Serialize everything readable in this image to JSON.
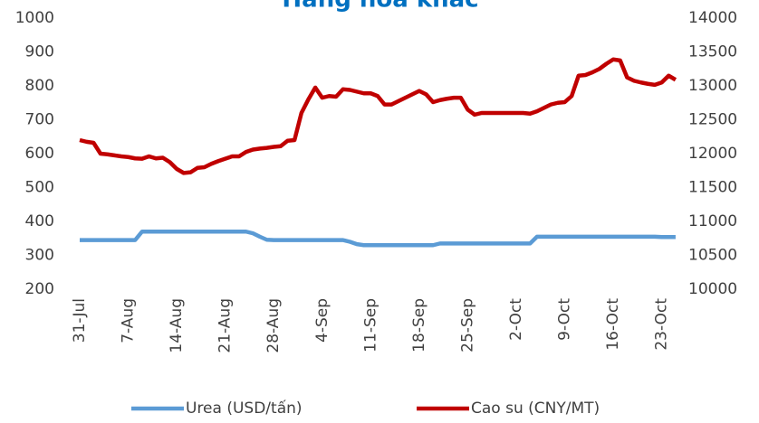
{
  "chart_data": {
    "type": "line",
    "title": "Hàng hóa khác",
    "categories": [
      "31-Jul",
      null,
      null,
      null,
      null,
      null,
      null,
      "7-Aug",
      null,
      null,
      null,
      null,
      null,
      null,
      "14-Aug",
      null,
      null,
      null,
      null,
      null,
      null,
      "21-Aug",
      null,
      null,
      null,
      null,
      null,
      null,
      "28-Aug",
      null,
      null,
      null,
      null,
      null,
      null,
      "4-Sep",
      null,
      null,
      null,
      null,
      null,
      null,
      "11-Sep",
      null,
      null,
      null,
      null,
      null,
      null,
      "18-Sep",
      null,
      null,
      null,
      null,
      null,
      null,
      "25-Sep",
      null,
      null,
      null,
      null,
      null,
      null,
      "2-Oct",
      null,
      null,
      null,
      null,
      null,
      null,
      "9-Oct",
      null,
      null,
      null,
      null,
      null,
      null,
      "16-Oct",
      null,
      null,
      null,
      null,
      null,
      null,
      "23-Oct",
      null,
      null
    ],
    "series": [
      {
        "name": "Urea (USD/tấn)",
        "color": "#5b9bd5",
        "axis": "y",
        "values": [
          345,
          345,
          345,
          345,
          345,
          345,
          345,
          345,
          345,
          370,
          370,
          370,
          370,
          370,
          370,
          370,
          370,
          370,
          370,
          370,
          370,
          370,
          370,
          370,
          370,
          365,
          355,
          346,
          345,
          345,
          345,
          345,
          345,
          345,
          345,
          345,
          345,
          345,
          345,
          340,
          333,
          330,
          330,
          330,
          330,
          330,
          330,
          330,
          330,
          330,
          330,
          330,
          335,
          335,
          335,
          335,
          335,
          335,
          335,
          335,
          335,
          335,
          335,
          335,
          335,
          335,
          355,
          355,
          355,
          355,
          355,
          355,
          355,
          355,
          355,
          355,
          355,
          355,
          355,
          355,
          355,
          355,
          355,
          355,
          354,
          354,
          354
        ]
      },
      {
        "name": "Cao su (CNY/MT)",
        "color": "#c00000",
        "axis": "y2",
        "values": [
          12200,
          12175,
          12160,
          12000,
          11990,
          11975,
          11960,
          11950,
          11930,
          11925,
          11960,
          11930,
          11940,
          11875,
          11775,
          11715,
          11725,
          11790,
          11800,
          11850,
          11890,
          11925,
          11960,
          11960,
          12025,
          12060,
          12075,
          12085,
          12100,
          12110,
          12190,
          12200,
          12600,
          12800,
          12975,
          12825,
          12850,
          12840,
          12950,
          12940,
          12915,
          12890,
          12890,
          12850,
          12725,
          12725,
          12775,
          12825,
          12875,
          12925,
          12875,
          12760,
          12790,
          12810,
          12825,
          12825,
          12650,
          12575,
          12600,
          12600,
          12600,
          12600,
          12600,
          12600,
          12600,
          12590,
          12625,
          12675,
          12725,
          12750,
          12760,
          12850,
          13150,
          13160,
          13200,
          13250,
          13325,
          13390,
          13375,
          13125,
          13075,
          13050,
          13030,
          13015,
          13050,
          13150,
          13090
        ]
      }
    ],
    "ylim": [
      200,
      1000
    ],
    "yticks": [
      200,
      300,
      400,
      500,
      600,
      700,
      800,
      900,
      1000
    ],
    "y2lim": [
      10000,
      14000
    ],
    "y2ticks": [
      10000,
      10500,
      11000,
      11500,
      12000,
      12500,
      13000,
      13500,
      14000
    ],
    "grid": false,
    "legend": "bottom"
  }
}
